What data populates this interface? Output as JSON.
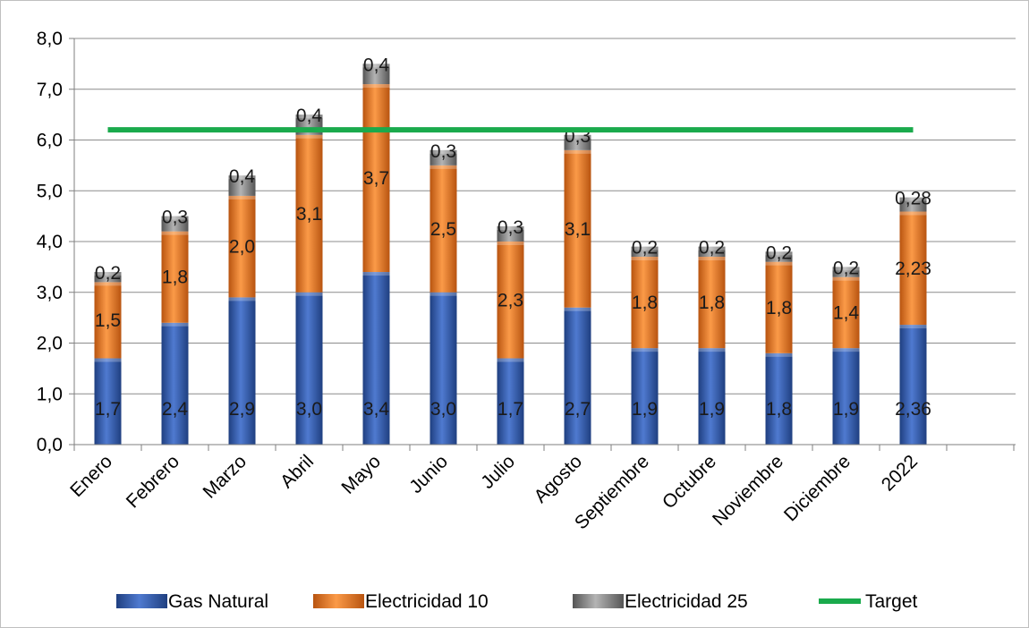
{
  "chart_data": {
    "type": "bar",
    "stacked": true,
    "categories": [
      "Enero",
      "Febrero",
      "Marzo",
      "Abril",
      "Mayo",
      "Junio",
      "Julio",
      "Agosto",
      "Septiembre",
      "Octubre",
      "Noviembre",
      "Diciembre",
      "2022"
    ],
    "series": [
      {
        "name": "Gas Natural",
        "values": [
          1.7,
          2.4,
          2.9,
          3.0,
          3.4,
          3.0,
          1.7,
          2.7,
          1.9,
          1.9,
          1.8,
          1.9,
          2.36
        ],
        "labels": [
          "1,7",
          "2,4",
          "2,9",
          "3,0",
          "3,4",
          "3,0",
          "1,7",
          "2,7",
          "1,9",
          "1,9",
          "1,8",
          "1,9",
          "2,36"
        ],
        "color": "#3a64b4"
      },
      {
        "name": "Electricidad 10",
        "values": [
          1.5,
          1.8,
          2.0,
          3.1,
          3.7,
          2.5,
          2.3,
          3.1,
          1.8,
          1.8,
          1.8,
          1.4,
          2.23
        ],
        "labels": [
          "1,5",
          "1,8",
          "2,0",
          "3,1",
          "3,7",
          "2,5",
          "2,3",
          "3,1",
          "1,8",
          "1,8",
          "1,8",
          "1,4",
          "2,23"
        ],
        "color": "#f07a24"
      },
      {
        "name": "Electricidad 25",
        "values": [
          0.2,
          0.3,
          0.4,
          0.4,
          0.4,
          0.3,
          0.3,
          0.3,
          0.2,
          0.2,
          0.2,
          0.2,
          0.28
        ],
        "labels": [
          "0,2",
          "0,3",
          "0,4",
          "0,4",
          "0,4",
          "0,3",
          "0,3",
          "0,3",
          "0,2",
          "0,2",
          "0,2",
          "0,2",
          "0,28"
        ],
        "color": "#8c8c8c"
      }
    ],
    "target": {
      "name": "Target",
      "value": 6.2,
      "color": "#1aaa4c"
    },
    "yticks": [
      "0,0",
      "1,0",
      "2,0",
      "3,0",
      "4,0",
      "5,0",
      "6,0",
      "7,0",
      "8,0"
    ],
    "ylim": [
      0,
      8
    ],
    "grid": true,
    "legend_position": "bottom"
  }
}
